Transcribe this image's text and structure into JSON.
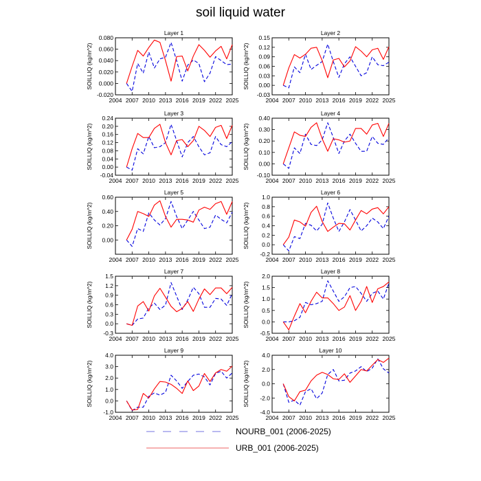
{
  "title": "soil liquid water",
  "colors": {
    "urb": "#ff0000",
    "nourb": "#0000dd",
    "legend_nourb": "#8f8fe8",
    "legend_urb": "#f08080"
  },
  "legend": {
    "nourb_label": "NOURB_001 (2006-2025)",
    "urb_label": "URB_001 (2006-2025)"
  },
  "chart_data": [
    {
      "type": "line",
      "title": "Layer 1",
      "ylabel": "SOILLIQ (kg/m^2)",
      "xlim": [
        2004,
        2025
      ],
      "ylim": [
        -0.02,
        0.08
      ],
      "xticks": [
        "2004",
        "2007",
        "2010",
        "2013",
        "2016",
        "2019",
        "2022",
        "2025"
      ],
      "yticks": [
        "-0.020",
        "0.000",
        "0.020",
        "0.040",
        "0.060",
        "0.080"
      ],
      "x": [
        2006,
        2007,
        2008,
        2009,
        2010,
        2011,
        2012,
        2013,
        2014,
        2015,
        2016,
        2017,
        2018,
        2019,
        2020,
        2021,
        2022,
        2023,
        2024,
        2025
      ],
      "series": [
        {
          "name": "NOURB_001 (2006-2025)",
          "values": [
            0.0,
            -0.014,
            0.035,
            0.018,
            0.055,
            0.027,
            0.043,
            0.046,
            0.072,
            0.04,
            0.004,
            0.032,
            0.041,
            0.035,
            0.003,
            0.018,
            0.047,
            0.04,
            0.033,
            0.034
          ]
        },
        {
          "name": "URB_001 (2006-2025)",
          "values": [
            0.0,
            0.03,
            0.058,
            0.048,
            0.063,
            0.076,
            0.072,
            0.04,
            0.004,
            0.047,
            0.048,
            0.022,
            0.048,
            0.068,
            0.058,
            0.046,
            0.057,
            0.065,
            0.043,
            0.068
          ]
        }
      ]
    },
    {
      "type": "line",
      "title": "Layer 2",
      "ylabel": "SOILLIQ (kg/m^2)",
      "xlim": [
        2004,
        2025
      ],
      "ylim": [
        -0.03,
        0.15
      ],
      "xticks": [
        "2004",
        "2007",
        "2010",
        "2013",
        "2016",
        "2019",
        "2022",
        "2025"
      ],
      "yticks": [
        "-0.03",
        "0.00",
        "0.03",
        "0.06",
        "0.09",
        "0.12",
        "0.15"
      ],
      "x": [
        2006,
        2007,
        2008,
        2009,
        2010,
        2011,
        2012,
        2013,
        2014,
        2015,
        2016,
        2017,
        2018,
        2019,
        2020,
        2021,
        2022,
        2023,
        2024,
        2025
      ],
      "series": [
        {
          "name": "NOURB_001 (2006-2025)",
          "values": [
            0.0,
            -0.008,
            0.058,
            0.04,
            0.098,
            0.05,
            0.063,
            0.075,
            0.13,
            0.075,
            0.025,
            0.068,
            0.09,
            0.06,
            0.03,
            0.04,
            0.09,
            0.065,
            0.062,
            0.073
          ]
        },
        {
          "name": "URB_001 (2006-2025)",
          "values": [
            0.0,
            0.055,
            0.097,
            0.086,
            0.098,
            0.117,
            0.12,
            0.078,
            0.024,
            0.08,
            0.085,
            0.058,
            0.077,
            0.122,
            0.108,
            0.09,
            0.112,
            0.117,
            0.082,
            0.122
          ]
        }
      ]
    },
    {
      "type": "line",
      "title": "Layer 3",
      "ylabel": "SOILLIQ (kg/m^2)",
      "xlim": [
        2004,
        2025
      ],
      "ylim": [
        -0.04,
        0.24
      ],
      "xticks": [
        "2004",
        "2007",
        "2010",
        "2013",
        "2016",
        "2019",
        "2022",
        "2025"
      ],
      "yticks": [
        "-0.04",
        "0.00",
        "0.04",
        "0.08",
        "0.12",
        "0.16",
        "0.20",
        "0.24"
      ],
      "x": [
        2006,
        2007,
        2008,
        2009,
        2010,
        2011,
        2012,
        2013,
        2014,
        2015,
        2016,
        2017,
        2018,
        2019,
        2020,
        2021,
        2022,
        2023,
        2024,
        2025
      ],
      "series": [
        {
          "name": "NOURB_001 (2006-2025)",
          "values": [
            0.0,
            -0.015,
            0.09,
            0.065,
            0.15,
            0.095,
            0.1,
            0.12,
            0.21,
            0.13,
            0.05,
            0.12,
            0.15,
            0.1,
            0.06,
            0.07,
            0.15,
            0.11,
            0.1,
            0.125
          ]
        },
        {
          "name": "URB_001 (2006-2025)",
          "values": [
            0.0,
            0.09,
            0.165,
            0.145,
            0.145,
            0.19,
            0.21,
            0.12,
            0.06,
            0.13,
            0.135,
            0.1,
            0.13,
            0.2,
            0.18,
            0.15,
            0.195,
            0.205,
            0.14,
            0.205
          ]
        }
      ]
    },
    {
      "type": "line",
      "title": "Layer 4",
      "ylabel": "SOILLIQ (kg/m^2)",
      "xlim": [
        2004,
        2025
      ],
      "ylim": [
        -0.1,
        0.4
      ],
      "xticks": [
        "2004",
        "2007",
        "2010",
        "2013",
        "2016",
        "2019",
        "2022",
        "2025"
      ],
      "yticks": [
        "-0.10",
        "0.00",
        "0.10",
        "0.20",
        "0.30",
        "0.40"
      ],
      "x": [
        2006,
        2007,
        2008,
        2009,
        2010,
        2011,
        2012,
        2013,
        2014,
        2015,
        2016,
        2017,
        2018,
        2019,
        2020,
        2021,
        2022,
        2023,
        2024,
        2025
      ],
      "series": [
        {
          "name": "NOURB_001 (2006-2025)",
          "values": [
            0.0,
            -0.04,
            0.14,
            0.09,
            0.26,
            0.17,
            0.16,
            0.21,
            0.36,
            0.23,
            0.09,
            0.2,
            0.26,
            0.18,
            0.11,
            0.11,
            0.24,
            0.18,
            0.17,
            0.23
          ]
        },
        {
          "name": "URB_001 (2006-2025)",
          "values": [
            0.0,
            0.14,
            0.28,
            0.25,
            0.24,
            0.32,
            0.36,
            0.22,
            0.11,
            0.22,
            0.21,
            0.19,
            0.2,
            0.31,
            0.31,
            0.26,
            0.34,
            0.355,
            0.24,
            0.355
          ]
        }
      ]
    },
    {
      "type": "line",
      "title": "Layer 5",
      "ylabel": "SOILLIQ (kg/m^2)",
      "xlim": [
        2004,
        2025
      ],
      "ylim": [
        -0.2,
        0.6
      ],
      "xticks": [
        "2004",
        "2007",
        "2010",
        "2013",
        "2016",
        "2019",
        "2022",
        "2025"
      ],
      "yticks": [
        "0.00",
        "0.20",
        "0.40",
        "0.60"
      ],
      "x": [
        2006,
        2007,
        2008,
        2009,
        2010,
        2011,
        2012,
        2013,
        2014,
        2015,
        2016,
        2017,
        2018,
        2019,
        2020,
        2021,
        2022,
        2023,
        2024,
        2025
      ],
      "series": [
        {
          "name": "NOURB_001 (2006-2025)",
          "values": [
            0.0,
            -0.09,
            0.16,
            0.12,
            0.38,
            0.28,
            0.21,
            0.3,
            0.54,
            0.33,
            0.16,
            0.28,
            0.4,
            0.28,
            0.16,
            0.18,
            0.35,
            0.29,
            0.24,
            0.39
          ]
        },
        {
          "name": "URB_001 (2006-2025)",
          "values": [
            0.0,
            0.15,
            0.4,
            0.37,
            0.33,
            0.49,
            0.55,
            0.33,
            0.18,
            0.29,
            0.29,
            0.28,
            0.25,
            0.42,
            0.46,
            0.43,
            0.51,
            0.54,
            0.36,
            0.54
          ]
        }
      ]
    },
    {
      "type": "line",
      "title": "Layer 6",
      "ylabel": "SOILLIQ (kg/m^2)",
      "xlim": [
        2004,
        2025
      ],
      "ylim": [
        -0.2,
        1.0
      ],
      "xticks": [
        "2004",
        "2007",
        "2010",
        "2013",
        "2016",
        "2019",
        "2022",
        "2025"
      ],
      "yticks": [
        "-0.2",
        "0.0",
        "0.2",
        "0.4",
        "0.6",
        "0.8",
        "1.0"
      ],
      "x": [
        2006,
        2007,
        2008,
        2009,
        2010,
        2011,
        2012,
        2013,
        2014,
        2015,
        2016,
        2017,
        2018,
        2019,
        2020,
        2021,
        2022,
        2023,
        2024,
        2025
      ],
      "series": [
        {
          "name": "NOURB_001 (2006-2025)",
          "values": [
            0.0,
            -0.13,
            0.17,
            0.13,
            0.45,
            0.41,
            0.29,
            0.43,
            0.88,
            0.56,
            0.28,
            0.48,
            0.74,
            0.52,
            0.29,
            0.4,
            0.56,
            0.48,
            0.34,
            0.6
          ]
        },
        {
          "name": "URB_001 (2006-2025)",
          "values": [
            0.0,
            0.16,
            0.52,
            0.48,
            0.39,
            0.68,
            0.81,
            0.49,
            0.28,
            0.37,
            0.45,
            0.44,
            0.31,
            0.52,
            0.72,
            0.65,
            0.75,
            0.78,
            0.65,
            0.8
          ]
        }
      ]
    },
    {
      "type": "line",
      "title": "Layer 7",
      "ylabel": "SOILLIQ (kg/m^2)",
      "xlim": [
        2004,
        2025
      ],
      "ylim": [
        -0.3,
        1.5
      ],
      "xticks": [
        "2004",
        "2007",
        "2010",
        "2013",
        "2016",
        "2019",
        "2022",
        "2025"
      ],
      "yticks": [
        "-0.3",
        "0.0",
        "0.3",
        "0.6",
        "0.9",
        "1.2",
        "1.5"
      ],
      "x": [
        2006,
        2007,
        2008,
        2009,
        2010,
        2011,
        2012,
        2013,
        2014,
        2015,
        2016,
        2017,
        2018,
        2019,
        2020,
        2021,
        2022,
        2023,
        2024,
        2025
      ],
      "series": [
        {
          "name": "NOURB_001 (2006-2025)",
          "values": [
            0.0,
            -0.05,
            0.15,
            0.18,
            0.5,
            0.65,
            0.45,
            0.59,
            1.3,
            0.87,
            0.45,
            0.75,
            1.15,
            0.95,
            0.52,
            0.52,
            0.8,
            0.78,
            0.58,
            0.95
          ]
        },
        {
          "name": "URB_001 (2006-2025)",
          "values": [
            0.0,
            -0.05,
            0.56,
            0.7,
            0.4,
            0.88,
            1.12,
            0.84,
            0.55,
            0.38,
            0.48,
            0.7,
            0.39,
            0.78,
            1.1,
            0.92,
            1.13,
            1.13,
            0.95,
            1.15
          ]
        }
      ]
    },
    {
      "type": "line",
      "title": "Layer 8",
      "ylabel": "SOILLIQ (kg/m^2)",
      "xlim": [
        2004,
        2025
      ],
      "ylim": [
        -0.5,
        2.0
      ],
      "xticks": [
        "2004",
        "2007",
        "2010",
        "2013",
        "2016",
        "2019",
        "2022",
        "2025"
      ],
      "yticks": [
        "-0.5",
        "0.0",
        "0.5",
        "1.0",
        "1.5",
        "2.0"
      ],
      "x": [
        2006,
        2007,
        2008,
        2009,
        2010,
        2011,
        2012,
        2013,
        2014,
        2015,
        2016,
        2017,
        2018,
        2019,
        2020,
        2021,
        2022,
        2023,
        2024,
        2025
      ],
      "series": [
        {
          "name": "NOURB_001 (2006-2025)",
          "values": [
            0.0,
            0.0,
            0.05,
            0.2,
            0.85,
            0.75,
            0.8,
            0.9,
            1.8,
            1.35,
            0.9,
            1.1,
            1.5,
            1.55,
            1.25,
            0.9,
            1.25,
            1.35,
            1.0,
            1.7
          ]
        },
        {
          "name": "URB_001 (2006-2025)",
          "values": [
            0.0,
            -0.35,
            0.25,
            0.8,
            0.4,
            0.9,
            1.3,
            1.05,
            1.05,
            0.8,
            0.5,
            0.65,
            1.15,
            0.5,
            0.9,
            1.55,
            0.85,
            1.45,
            1.55,
            1.75
          ]
        }
      ]
    },
    {
      "type": "line",
      "title": "Layer 9",
      "ylabel": "SOILLIQ (kg/m^2)",
      "xlim": [
        2004,
        2025
      ],
      "ylim": [
        -1.0,
        4.0
      ],
      "xticks": [
        "2004",
        "2007",
        "2010",
        "2013",
        "2016",
        "2019",
        "2022",
        "2025"
      ],
      "yticks": [
        "-1.0",
        "0.0",
        "1.0",
        "2.0",
        "3.0",
        "4.0"
      ],
      "x": [
        2006,
        2007,
        2008,
        2009,
        2010,
        2011,
        2012,
        2013,
        2014,
        2015,
        2016,
        2017,
        2018,
        2019,
        2020,
        2021,
        2022,
        2023,
        2024,
        2025
      ],
      "series": [
        {
          "name": "NOURB_001 (2006-2025)",
          "values": [
            0.0,
            -0.85,
            -0.55,
            -0.55,
            0.4,
            0.7,
            0.5,
            0.75,
            2.25,
            1.75,
            1.1,
            1.7,
            2.25,
            2.35,
            2.1,
            1.4,
            2.4,
            2.6,
            2.0,
            2.45
          ]
        },
        {
          "name": "URB_001 (2006-2025)",
          "values": [
            0.0,
            -0.8,
            -0.75,
            0.65,
            0.25,
            1.05,
            1.7,
            1.65,
            1.45,
            1.1,
            0.65,
            1.75,
            0.9,
            1.3,
            2.4,
            1.7,
            2.45,
            2.75,
            2.6,
            3.05
          ]
        }
      ]
    },
    {
      "type": "line",
      "title": "Layer 10",
      "ylabel": "SOILLIQ (kg/m^2)",
      "xlim": [
        2004,
        2025
      ],
      "ylim": [
        -4.0,
        4.0
      ],
      "xticks": [
        "2004",
        "2007",
        "2010",
        "2013",
        "2016",
        "2019",
        "2022",
        "2025"
      ],
      "yticks": [
        "-4.0",
        "-2.0",
        "0.0",
        "2.0",
        "4.0"
      ],
      "x": [
        2006,
        2007,
        2008,
        2009,
        2010,
        2011,
        2012,
        2013,
        2014,
        2015,
        2016,
        2017,
        2018,
        2019,
        2020,
        2021,
        2022,
        2023,
        2024,
        2025
      ],
      "series": [
        {
          "name": "NOURB_001 (2006-2025)",
          "values": [
            0.0,
            -2.6,
            -2.3,
            -3.0,
            -1.1,
            -0.7,
            -2.1,
            -1.3,
            1.3,
            2.0,
            0.4,
            0.5,
            1.5,
            1.8,
            2.4,
            1.7,
            2.2,
            3.5,
            2.1,
            1.5
          ]
        },
        {
          "name": "URB_001 (2006-2025)",
          "values": [
            0.0,
            -1.8,
            -2.4,
            -1.1,
            -0.9,
            0.4,
            1.2,
            1.6,
            1.3,
            0.7,
            0.6,
            1.4,
            0.2,
            1.1,
            2.0,
            1.8,
            2.6,
            3.4,
            3.0,
            3.6
          ]
        }
      ]
    }
  ]
}
